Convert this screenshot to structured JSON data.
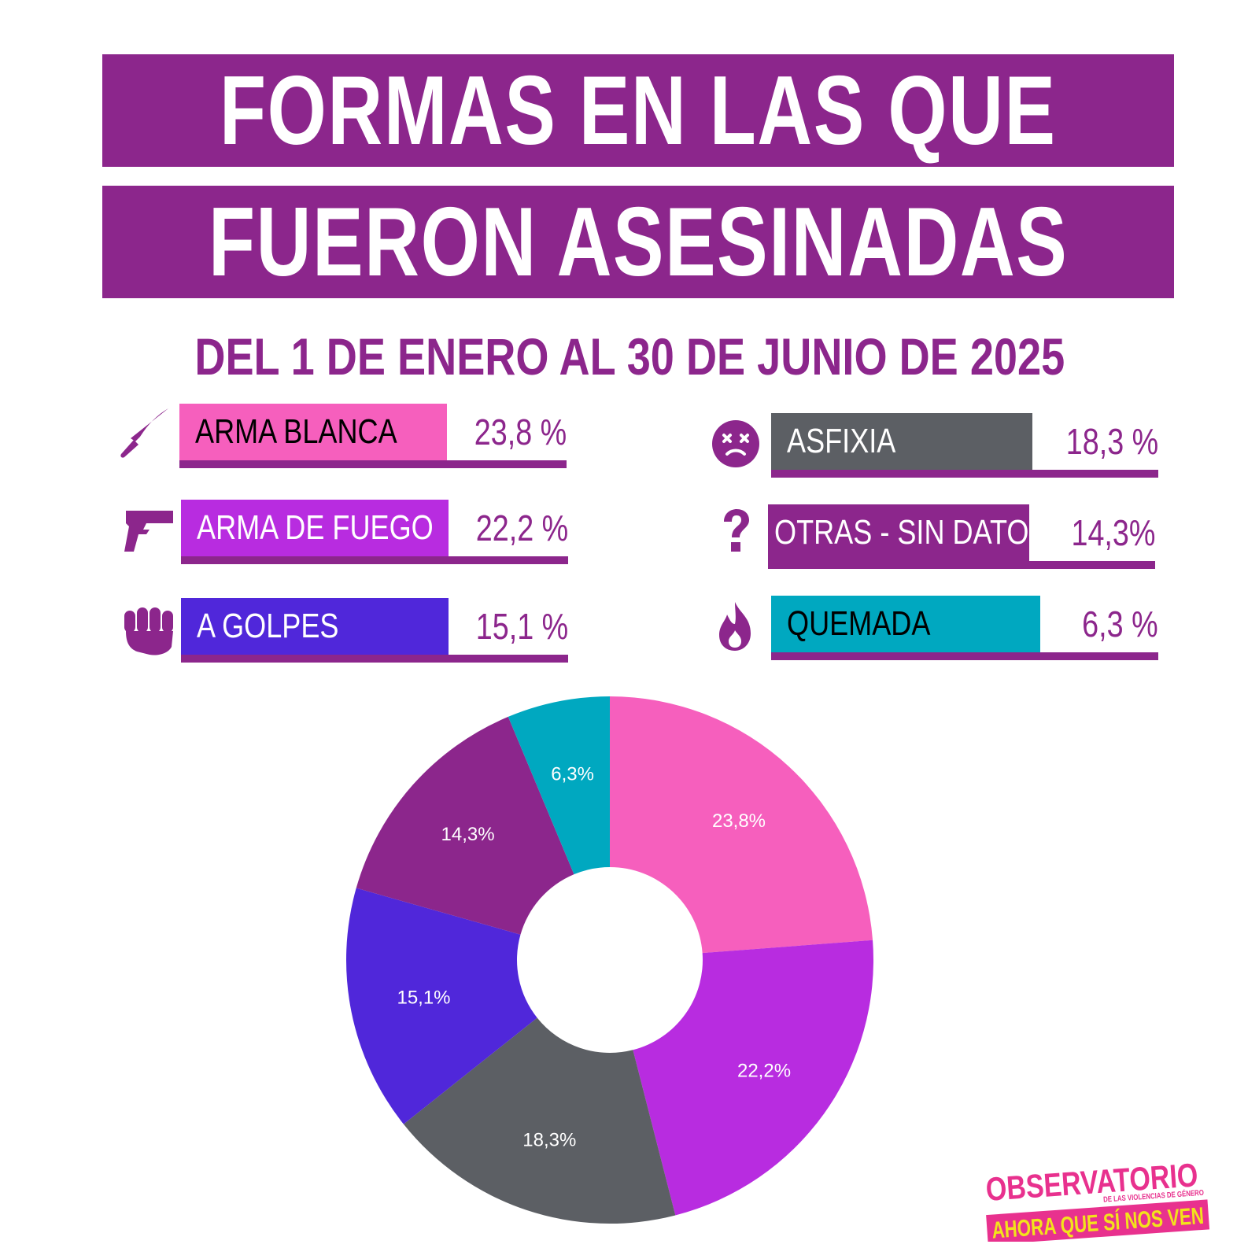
{
  "title": {
    "line1": "FORMAS EN LAS QUE",
    "line2": "FUERON ASESINADAS"
  },
  "subtitle": "DEL 1 DE ENERO AL 30 DE JUNIO DE 2025",
  "legend": [
    {
      "label": "ARMA BLANCA",
      "pct": "23,8 %",
      "color": "#f65fbd",
      "text_color": "#000000",
      "icon": "knife-icon"
    },
    {
      "label": "ARMA DE FUEGO",
      "pct": "22,2 %",
      "color": "#b82ce0",
      "text_color": "#ffffff",
      "icon": "gun-icon"
    },
    {
      "label": "A GOLPES",
      "pct": "15,1 %",
      "color": "#5027da",
      "text_color": "#ffffff",
      "icon": "fist-icon"
    },
    {
      "label": "ASFIXIA",
      "pct": "18,3 %",
      "color": "#5c5f64",
      "text_color": "#ffffff",
      "icon": "dizzy-face-icon"
    },
    {
      "label": "OTRAS - SIN DATOS",
      "pct": "14,3%",
      "color": "#8c268c",
      "text_color": "#ffffff",
      "icon": "question-icon"
    },
    {
      "label": "QUEMADA",
      "pct": "6,3 %",
      "color": "#00a8c0",
      "text_color": "#000000",
      "icon": "fire-icon"
    }
  ],
  "chart_data": {
    "type": "pie",
    "donut": true,
    "categories": [
      "ARMA BLANCA",
      "ARMA DE FUEGO",
      "ASFIXIA",
      "A GOLPES",
      "OTRAS - SIN DATOS",
      "QUEMADA"
    ],
    "values": [
      23.8,
      22.2,
      18.3,
      15.1,
      14.3,
      6.3
    ],
    "labels": [
      "23,8%",
      "22,2%",
      "18,3%",
      "15,1%",
      "14,3%",
      "6,3%"
    ],
    "colors": [
      "#f65fbd",
      "#b82ce0",
      "#5c5f64",
      "#5027da",
      "#8c268c",
      "#00a8c0"
    ]
  },
  "logo": {
    "line1": "OBSERVATORIO",
    "tagline": "DE LAS VIOLENCIAS DE GÉNERO",
    "line2": "AHORA QUE SÍ NOS VEN"
  },
  "colors": {
    "brand_purple": "#8c268c",
    "logo_pink": "#e8318e",
    "logo_yellow": "#f2e31b"
  }
}
